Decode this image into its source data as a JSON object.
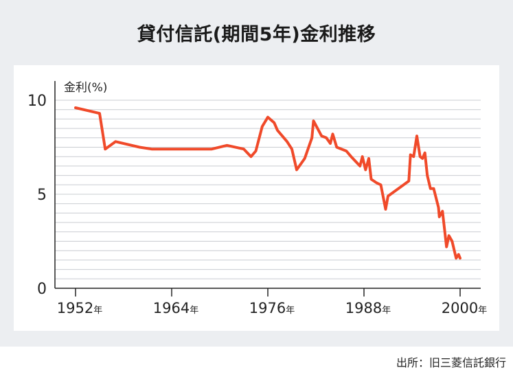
{
  "title": "貸付信託(期間5年)金利推移",
  "source": "出所：旧三菱信託銀行",
  "chart_data": {
    "type": "line",
    "title": "貸付信託(期間5年)金利推移",
    "ylabel": "金利(%)",
    "xlabel": "",
    "x_unit": "年",
    "ylim": [
      0,
      10
    ],
    "xlim": [
      1952,
      2000
    ],
    "y_ticks": [
      "10",
      "5",
      "0"
    ],
    "x_ticks": [
      "1952",
      "1964",
      "1976",
      "1988",
      "2000"
    ],
    "grid": true,
    "line_color": "#f04a2a",
    "series": [
      {
        "points": [
          [
            1952.0,
            9.6
          ],
          [
            1955.0,
            9.3
          ],
          [
            1955.7,
            7.4
          ],
          [
            1957.0,
            7.8
          ],
          [
            1960.0,
            7.5
          ],
          [
            1961.5,
            7.4
          ],
          [
            1969.0,
            7.4
          ],
          [
            1970.9,
            7.6
          ],
          [
            1973.0,
            7.4
          ],
          [
            1973.9,
            7.0
          ],
          [
            1974.5,
            7.3
          ],
          [
            1975.3,
            8.6
          ],
          [
            1976.0,
            9.1
          ],
          [
            1976.8,
            8.8
          ],
          [
            1977.2,
            8.4
          ],
          [
            1978.4,
            7.8
          ],
          [
            1979.0,
            7.4
          ],
          [
            1979.6,
            6.3
          ],
          [
            1980.6,
            6.9
          ],
          [
            1981.5,
            8.0
          ],
          [
            1981.7,
            8.9
          ],
          [
            1982.7,
            8.1
          ],
          [
            1983.3,
            8.0
          ],
          [
            1983.8,
            7.7
          ],
          [
            1984.1,
            8.2
          ],
          [
            1984.6,
            7.5
          ],
          [
            1985.8,
            7.3
          ],
          [
            1986.4,
            7.0
          ],
          [
            1987.5,
            6.5
          ],
          [
            1987.8,
            7.0
          ],
          [
            1988.2,
            6.3
          ],
          [
            1988.6,
            6.9
          ],
          [
            1988.9,
            5.8
          ],
          [
            1989.6,
            5.6
          ],
          [
            1990.1,
            5.5
          ],
          [
            1990.7,
            4.2
          ],
          [
            1991.0,
            4.9
          ],
          [
            1993.6,
            5.7
          ],
          [
            1993.8,
            7.1
          ],
          [
            1994.2,
            7.0
          ],
          [
            1994.6,
            8.1
          ],
          [
            1995.0,
            7.0
          ],
          [
            1995.3,
            6.9
          ],
          [
            1995.6,
            7.2
          ],
          [
            1995.9,
            6.0
          ],
          [
            1996.3,
            5.3
          ],
          [
            1996.7,
            5.3
          ],
          [
            1997.3,
            4.3
          ],
          [
            1997.4,
            3.8
          ],
          [
            1997.8,
            4.1
          ],
          [
            1998.3,
            2.2
          ],
          [
            1998.6,
            2.8
          ],
          [
            1999.0,
            2.5
          ],
          [
            1999.5,
            1.6
          ],
          [
            1999.8,
            1.8
          ],
          [
            2000.0,
            1.6
          ]
        ]
      }
    ]
  }
}
